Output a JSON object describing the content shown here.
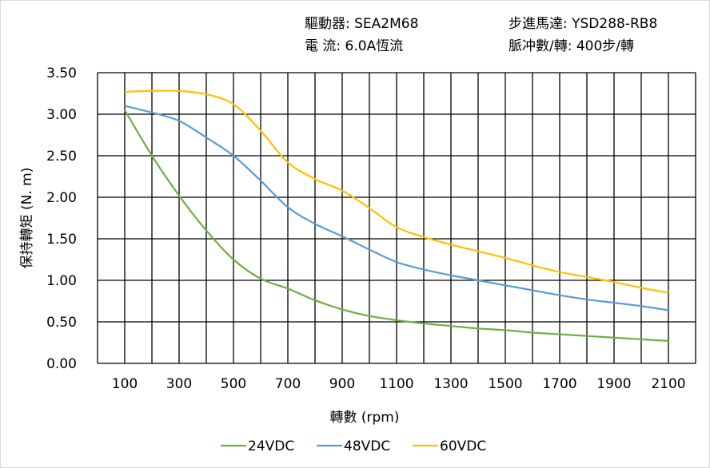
{
  "header": {
    "driver": "驅動器:  SEA2M68",
    "current": "電    流:  6.0A恆流",
    "motor": "步進馬達:  YSD288-RB8",
    "pulses": "脈冲數/轉:  400步/轉"
  },
  "chart_data": {
    "type": "line",
    "xlabel": "轉數 (rpm)",
    "ylabel": "保持轉矩 (N. m)",
    "xlim": [
      0,
      2200
    ],
    "ylim": [
      0,
      3.5
    ],
    "x_ticks": [
      "100",
      "300",
      "500",
      "700",
      "900",
      "1100",
      "1300",
      "1500",
      "1700",
      "1900",
      "2100"
    ],
    "y_ticks": [
      "0.00",
      "0.50",
      "1.00",
      "1.50",
      "2.00",
      "2.50",
      "3.00",
      "3.50"
    ],
    "grid": true,
    "legend": "bottom",
    "x": [
      100,
      200,
      300,
      400,
      500,
      600,
      700,
      800,
      900,
      1000,
      1100,
      1200,
      1300,
      1400,
      1500,
      1600,
      1700,
      1800,
      1900,
      2000,
      2100
    ],
    "series": [
      {
        "name": "24VDC",
        "color": "#70ad47",
        "values": [
          3.05,
          2.5,
          2.02,
          1.6,
          1.25,
          1.02,
          0.9,
          0.76,
          0.65,
          0.57,
          0.52,
          0.48,
          0.45,
          0.42,
          0.4,
          0.37,
          0.35,
          0.33,
          0.31,
          0.29,
          0.27
        ]
      },
      {
        "name": "48VDC",
        "color": "#5b9bd5",
        "values": [
          3.1,
          3.02,
          2.92,
          2.72,
          2.5,
          2.2,
          1.88,
          1.68,
          1.53,
          1.37,
          1.22,
          1.13,
          1.06,
          1.0,
          0.94,
          0.88,
          0.82,
          0.77,
          0.73,
          0.69,
          0.64
        ]
      },
      {
        "name": "60VDC",
        "color": "#ffc000",
        "values": [
          3.27,
          3.28,
          3.28,
          3.24,
          3.12,
          2.8,
          2.42,
          2.22,
          2.08,
          1.87,
          1.64,
          1.52,
          1.43,
          1.35,
          1.27,
          1.18,
          1.1,
          1.04,
          0.98,
          0.91,
          0.85
        ]
      }
    ]
  }
}
